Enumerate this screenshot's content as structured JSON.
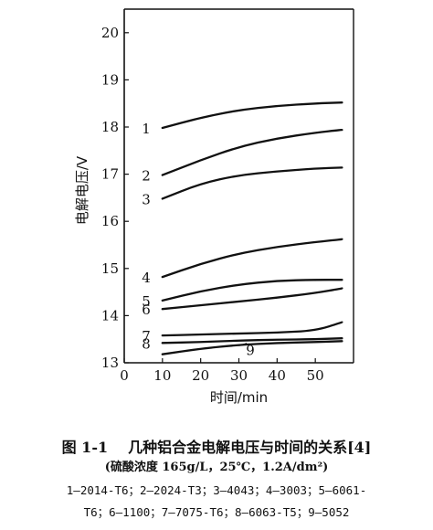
{
  "chart_data": {
    "type": "line",
    "xlabel": "时间/min",
    "ylabel": "电解电压/V",
    "xlim": [
      0,
      60
    ],
    "ylim": [
      13,
      20.5
    ],
    "x_ticks": [
      0,
      10,
      20,
      30,
      40,
      50
    ],
    "y_ticks": [
      13,
      14,
      15,
      16,
      17,
      18,
      19,
      20
    ],
    "grid": false,
    "series": [
      {
        "name": "1",
        "x": [
          10,
          20,
          30,
          40,
          50,
          57
        ],
        "values": [
          17.98,
          18.2,
          18.36,
          18.45,
          18.5,
          18.52
        ]
      },
      {
        "name": "2",
        "x": [
          10,
          20,
          30,
          40,
          50,
          57
        ],
        "values": [
          16.98,
          17.3,
          17.58,
          17.76,
          17.88,
          17.94
        ]
      },
      {
        "name": "3",
        "x": [
          10,
          20,
          30,
          40,
          50,
          57
        ],
        "values": [
          16.48,
          16.8,
          16.98,
          17.06,
          17.12,
          17.14
        ]
      },
      {
        "name": "4",
        "x": [
          10,
          20,
          30,
          40,
          50,
          57
        ],
        "values": [
          14.82,
          15.1,
          15.32,
          15.46,
          15.56,
          15.62
        ]
      },
      {
        "name": "5",
        "x": [
          10,
          20,
          30,
          40,
          50,
          57
        ],
        "values": [
          14.32,
          14.52,
          14.66,
          14.74,
          14.76,
          14.76
        ]
      },
      {
        "name": "6",
        "x": [
          10,
          20,
          30,
          40,
          50,
          57
        ],
        "values": [
          14.14,
          14.22,
          14.3,
          14.38,
          14.48,
          14.58
        ]
      },
      {
        "name": "7",
        "x": [
          10,
          20,
          30,
          40,
          50,
          57
        ],
        "values": [
          13.58,
          13.6,
          13.62,
          13.64,
          13.68,
          13.86
        ]
      },
      {
        "name": "8",
        "x": [
          10,
          20,
          30,
          40,
          50,
          57
        ],
        "values": [
          13.42,
          13.44,
          13.47,
          13.49,
          13.5,
          13.52
        ]
      },
      {
        "name": "9",
        "x": [
          10,
          20,
          30,
          40,
          50,
          57
        ],
        "values": [
          13.18,
          13.3,
          13.38,
          13.42,
          13.44,
          13.46
        ]
      }
    ]
  },
  "caption": {
    "figure_number": "图 1-1",
    "title_text": "几种铝合金电解电压与时间的关系[4]",
    "conditions": "(硫酸浓度 165g/L，25℃，1.2A/dm²)",
    "legend_line1": "1—2014-T6；2—2024-T3；3—4043；4—3003；5—6061-",
    "legend_line2": "T6；6—1100；7—7075-T6；8—6063-T5；9—5052"
  }
}
